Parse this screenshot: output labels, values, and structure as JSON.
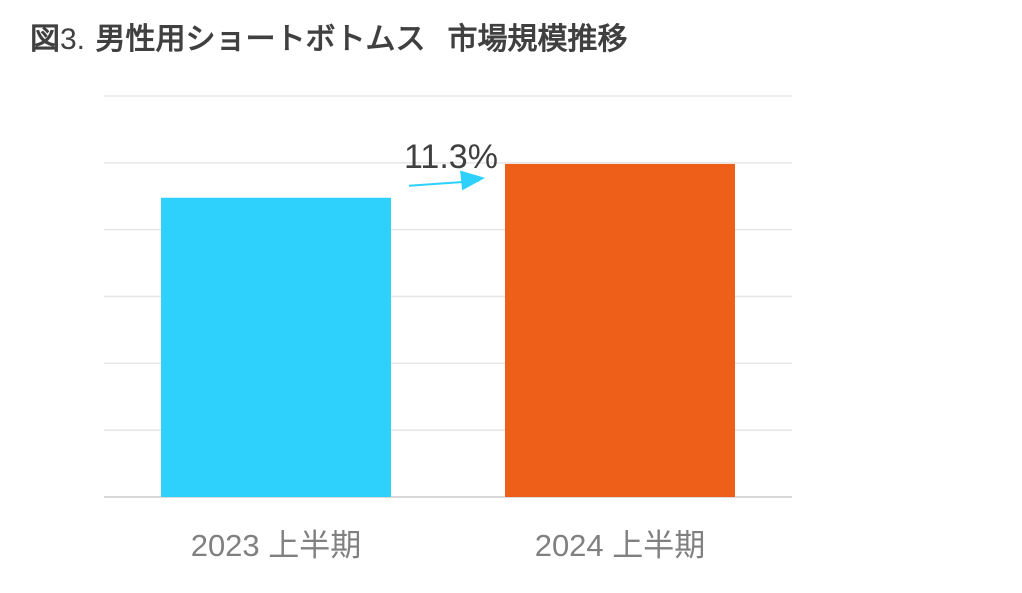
{
  "title": {
    "figure_label": "図",
    "figure_number": "3.",
    "main": "男性用ショートボトムス",
    "sub": "市場規模推移"
  },
  "chart_data": {
    "type": "bar",
    "categories": [
      "2023 上半期",
      "2024 上半期"
    ],
    "values": [
      100,
      111.3
    ],
    "colors": [
      "#2ed0fc",
      "#ee5f1a"
    ],
    "annotation": {
      "text": "11.3%",
      "type": "growth-arrow",
      "color": "#2ed0fc"
    },
    "ylim": [
      0,
      134
    ],
    "grid": true,
    "legend": "none"
  }
}
